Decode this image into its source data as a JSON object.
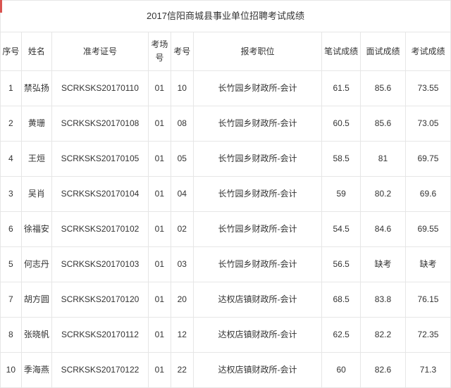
{
  "title": "2017信阳商城县事业单位招聘考试成绩",
  "headers": {
    "seq": "序号",
    "name": "姓名",
    "admission": "准考证号",
    "room": "考场号",
    "num": "考号",
    "position": "报考职位",
    "written": "笔试成绩",
    "interview": "面试成绩",
    "exam": "考试成绩"
  },
  "rows": [
    {
      "seq": "1",
      "name": "禁弘扬",
      "admission": "SCRKSKS20170110",
      "room": "01",
      "num": "10",
      "position": "长竹园乡财政所-会计",
      "written": "61.5",
      "interview": "85.6",
      "exam": "73.55"
    },
    {
      "seq": "2",
      "name": "黄珊",
      "admission": "SCRKSKS20170108",
      "room": "01",
      "num": "08",
      "position": "长竹园乡财政所-会计",
      "written": "60.5",
      "interview": "85.6",
      "exam": "73.05"
    },
    {
      "seq": "4",
      "name": "王烜",
      "admission": "SCRKSKS20170105",
      "room": "01",
      "num": "05",
      "position": "长竹园乡财政所-会计",
      "written": "58.5",
      "interview": "81",
      "exam": "69.75"
    },
    {
      "seq": "3",
      "name": "吴肖",
      "admission": "SCRKSKS20170104",
      "room": "01",
      "num": "04",
      "position": "长竹园乡财政所-会计",
      "written": "59",
      "interview": "80.2",
      "exam": "69.6"
    },
    {
      "seq": "6",
      "name": "徐福安",
      "admission": "SCRKSKS20170102",
      "room": "01",
      "num": "02",
      "position": "长竹园乡财政所-会计",
      "written": "54.5",
      "interview": "84.6",
      "exam": "69.55"
    },
    {
      "seq": "5",
      "name": "何志丹",
      "admission": "SCRKSKS20170103",
      "room": "01",
      "num": "03",
      "position": "长竹园乡财政所-会计",
      "written": "56.5",
      "interview": "缺考",
      "exam": "缺考"
    },
    {
      "seq": "7",
      "name": "胡方圆",
      "admission": "SCRKSKS20170120",
      "room": "01",
      "num": "20",
      "position": "达权店镇财政所-会计",
      "written": "68.5",
      "interview": "83.8",
      "exam": "76.15"
    },
    {
      "seq": "8",
      "name": "张晓帆",
      "admission": "SCRKSKS20170112",
      "room": "01",
      "num": "12",
      "position": "达权店镇财政所-会计",
      "written": "62.5",
      "interview": "82.2",
      "exam": "72.35"
    },
    {
      "seq": "10",
      "name": "季海燕",
      "admission": "SCRKSKS20170122",
      "room": "01",
      "num": "22",
      "position": "达权店镇财政所-会计",
      "written": "60",
      "interview": "82.6",
      "exam": "71.3"
    }
  ],
  "style": {
    "border_color": "#e6e6e6",
    "text_color": "#333333",
    "accent_color": "#d9534f",
    "background": "#ffffff",
    "font_size": 12
  }
}
